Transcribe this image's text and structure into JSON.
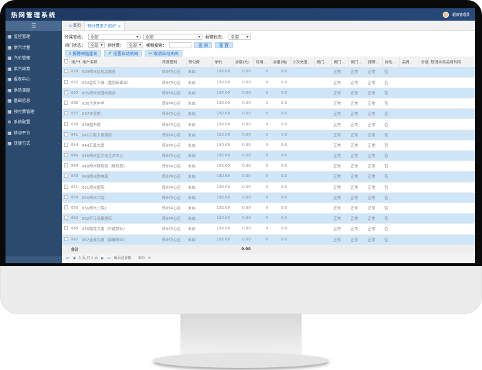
{
  "app": {
    "title": "热网管理系统",
    "user": "超级管理员"
  },
  "sidebar": {
    "toggle": "☰",
    "items": [
      {
        "label": "监控管理",
        "icon": "monitor-icon"
      },
      {
        "label": "供汽计量",
        "icon": "grid-icon"
      },
      {
        "label": "汽价管理",
        "icon": "grid-icon"
      },
      {
        "label": "供汽结算",
        "icon": "grid-icon"
      },
      {
        "label": "报表中心",
        "icon": "grid-icon"
      },
      {
        "label": "供热调度",
        "icon": "grid-icon"
      },
      {
        "label": "基础信息",
        "icon": "grid-icon"
      },
      {
        "label": "预付费管理",
        "icon": "monitor-icon"
      },
      {
        "label": "系统配置",
        "icon": "gear-icon"
      },
      {
        "label": "移动平台",
        "icon": "grid-icon"
      },
      {
        "label": "快捷方式",
        "icon": "grid-icon"
      }
    ]
  },
  "tabs": [
    {
      "label": "首页"
    },
    {
      "label": "预付费用户维护"
    }
  ],
  "filters": {
    "pipeline_label": "所属管线：",
    "pipeline_value": "全部",
    "pipeline2_value": "全部",
    "alarm_label": "报警状态：",
    "alarm_value": "全部",
    "valve_label": "阀门状态：",
    "valve_value": "全部",
    "prepay_label": "预付费：",
    "prepay_value": "全部",
    "search_label": "模糊搜索：",
    "search_value": "",
    "query": "查 询",
    "reset": "重 置"
  },
  "actions": {
    "alarm_reset": "报警阀值重发",
    "set_auto_close": "设置自动关阀",
    "cancel_auto_close": "取消自动关阀"
  },
  "columns": [
    "用户编号",
    "用户名称",
    "所属管线",
    "预付费",
    "单价",
    "余额(元)",
    "可用...",
    "余量(吨)",
    "上次充值...",
    "阀门...",
    "阀门...",
    "阀门...",
    "报警...",
    "自动...",
    "关阀...",
    "分组",
    "取消自动关阀时间"
  ],
  "rows": [
    [
      "029",
      "029郑州区机关服务",
      "郑州中心区",
      "未启",
      "182.00",
      "0.00",
      "0",
      "0.0",
      "",
      "",
      "正常",
      "正常",
      "正常",
      "否",
      "",
      "",
      ""
    ],
    [
      "032",
      "032益民下城（嘉同新面业）",
      "郑州中心区",
      "未启",
      "182.00",
      "0.00",
      "0",
      "0.0",
      "",
      "",
      "正常",
      "正常",
      "正常",
      "否",
      "",
      "",
      ""
    ],
    [
      "035",
      "035郑州市园林局办",
      "郑州中心区",
      "未启",
      "182.00",
      "0.00",
      "0",
      "0.0",
      "",
      "",
      "正常",
      "正常",
      "正常",
      "否",
      "",
      "",
      ""
    ],
    [
      "036",
      "036宁居中学",
      "郑州中心区",
      "未启",
      "182.00",
      "0.00",
      "0",
      "0.0",
      "",
      "",
      "正常",
      "正常",
      "正常",
      "否",
      "",
      "",
      ""
    ],
    [
      "037",
      "037体育馆",
      "郑州中心区",
      "未启",
      "182.00",
      "0.00",
      "0",
      "0.0",
      "",
      "",
      "正常",
      "正常",
      "正常",
      "否",
      "",
      "",
      ""
    ],
    [
      "038",
      "038图书馆",
      "郑州中心区",
      "未启",
      "182.00",
      "0.00",
      "0",
      "0.0",
      "",
      "",
      "正常",
      "正常",
      "正常",
      "否",
      "",
      "",
      ""
    ],
    [
      "041",
      "041江南大食酒店",
      "郑州中心区",
      "未启",
      "182.00",
      "0.00",
      "0",
      "0.0",
      "",
      "",
      "正常",
      "正常",
      "正常",
      "否",
      "",
      "",
      ""
    ],
    [
      "044",
      "044汇鑫大厦",
      "郑州中心区",
      "未启",
      "182.00",
      "0.00",
      "0",
      "0.0",
      "",
      "",
      "正常",
      "正常",
      "正常",
      "否",
      "",
      "",
      ""
    ],
    [
      "046",
      "046郑州区文化艺术中心",
      "郑州中心区",
      "未启",
      "182.00",
      "0.00",
      "0",
      "0.0",
      "",
      "",
      "正常",
      "正常",
      "正常",
      "否",
      "",
      "",
      ""
    ],
    [
      "048",
      "048郑州财政局（财政局）",
      "郑州中心区",
      "未启",
      "182.00",
      "0.00",
      "0",
      "0.0",
      "",
      "",
      "正常",
      "正常",
      "正常",
      "否",
      "",
      "",
      ""
    ],
    [
      "049",
      "049郑州供电局",
      "郑州中心区",
      "未启",
      "182.00",
      "0.00",
      "0",
      "0.0",
      "",
      "",
      "正常",
      "正常",
      "正常",
      "否",
      "",
      "",
      ""
    ],
    [
      "051",
      "051郑州医院",
      "郑州中心区",
      "未启",
      "182.00",
      "0.00",
      "0",
      "0.0",
      "",
      "",
      "正常",
      "正常",
      "正常",
      "否",
      "",
      "",
      ""
    ],
    [
      "055",
      "055郑州二院",
      "郑州中心区",
      "未启",
      "182.00",
      "0.00",
      "0",
      "0.0",
      "",
      "",
      "正常",
      "正常",
      "正常",
      "否",
      "",
      "",
      ""
    ],
    [
      "056",
      "056郑州二院2",
      "郑州中心区",
      "未启",
      "182.00",
      "0.00",
      "0",
      "0.0",
      "",
      "",
      "正常",
      "正常",
      "正常",
      "否",
      "",
      "",
      ""
    ],
    [
      "062",
      "062开元名都酒店",
      "郑州中心区",
      "未启",
      "182.00",
      "0.00",
      "0",
      "0.0",
      "",
      "",
      "正常",
      "正常",
      "正常",
      "否",
      "",
      "",
      ""
    ],
    [
      "066",
      "066鹏程大厦（中建物业）",
      "郑州中心区",
      "未启",
      "182.00",
      "0.00",
      "0",
      "0.0",
      "",
      "",
      "正常",
      "正常",
      "正常",
      "否",
      "",
      "",
      ""
    ],
    [
      "067",
      "067金茂大厦（鼎泰物业）",
      "郑州中心区",
      "未启",
      "182.00",
      "0.00",
      "0",
      "0.0",
      "",
      "",
      "正常",
      "正常",
      "正常",
      "否",
      "",
      "",
      ""
    ]
  ],
  "totals": {
    "label": "合计",
    "balance": "0.00"
  },
  "pager": {
    "page_info": "1 页,共 1 页",
    "page_size_label": "每页记录数：",
    "page_size": "300"
  }
}
